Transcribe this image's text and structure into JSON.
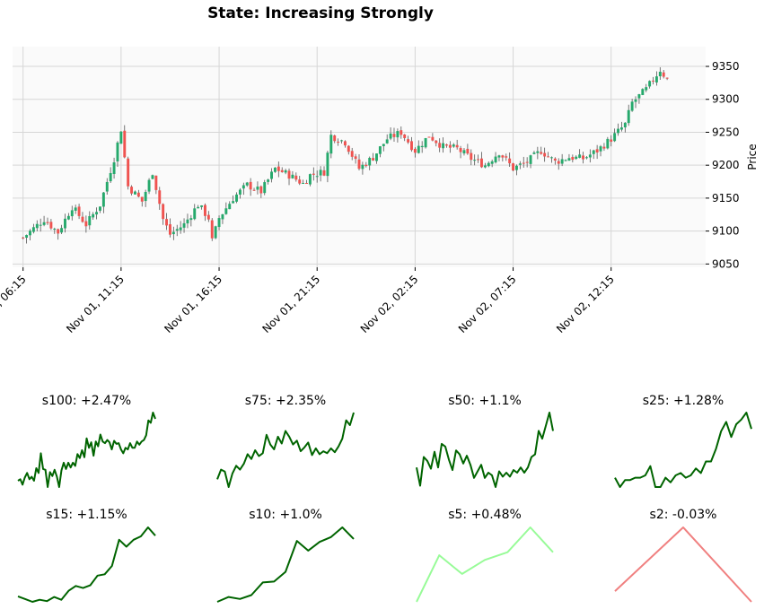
{
  "title": "State: Increasing Strongly",
  "chart_data": [
    {
      "type": "candlestick",
      "ylabel": "Price",
      "ylim": [
        9045,
        9380
      ],
      "y_ticks": [
        9050,
        9100,
        9150,
        9200,
        9250,
        9300,
        9350
      ],
      "x_range": [
        -3,
        195
      ],
      "x_ticks": [
        {
          "label": "Nov 01, 06:15",
          "index": 0
        },
        {
          "label": "Nov 01, 11:15",
          "index": 28
        },
        {
          "label": "Nov 01, 16:15",
          "index": 56
        },
        {
          "label": "Nov 01, 21:15",
          "index": 84
        },
        {
          "label": "Nov 02, 02:15",
          "index": 112
        },
        {
          "label": "Nov 02, 07:15",
          "index": 140
        },
        {
          "label": "Nov 02, 12:15",
          "index": 168
        }
      ],
      "grid": true,
      "colors": {
        "up": "#26a96c",
        "down": "#ef5350",
        "wick": "#555555",
        "plot_bg": "#fafafa",
        "grid": "#d6d6d6"
      },
      "anchors": [
        [
          0,
          9090
        ],
        [
          6,
          9118
        ],
        [
          10,
          9098
        ],
        [
          14,
          9137
        ],
        [
          18,
          9110
        ],
        [
          22,
          9140
        ],
        [
          26,
          9210
        ],
        [
          28,
          9255
        ],
        [
          30,
          9168
        ],
        [
          34,
          9145
        ],
        [
          37,
          9190
        ],
        [
          40,
          9118
        ],
        [
          42,
          9095
        ],
        [
          46,
          9110
        ],
        [
          50,
          9140
        ],
        [
          53,
          9120
        ],
        [
          54,
          9085
        ],
        [
          56,
          9120
        ],
        [
          60,
          9150
        ],
        [
          64,
          9170
        ],
        [
          68,
          9160
        ],
        [
          72,
          9195
        ],
        [
          76,
          9185
        ],
        [
          80,
          9172
        ],
        [
          82,
          9185
        ],
        [
          86,
          9190
        ],
        [
          88,
          9245
        ],
        [
          92,
          9235
        ],
        [
          96,
          9195
        ],
        [
          100,
          9212
        ],
        [
          104,
          9240
        ],
        [
          108,
          9250
        ],
        [
          112,
          9222
        ],
        [
          116,
          9245
        ],
        [
          120,
          9228
        ],
        [
          124,
          9225
        ],
        [
          128,
          9210
        ],
        [
          132,
          9200
        ],
        [
          136,
          9220
        ],
        [
          140,
          9195
        ],
        [
          144,
          9205
        ],
        [
          148,
          9222
        ],
        [
          152,
          9205
        ],
        [
          156,
          9212
        ],
        [
          160,
          9210
        ],
        [
          164,
          9222
        ],
        [
          168,
          9240
        ],
        [
          172,
          9262
        ],
        [
          174,
          9295
        ],
        [
          178,
          9315
        ],
        [
          182,
          9345
        ],
        [
          184,
          9330
        ]
      ],
      "seed": 7
    },
    {
      "type": "line",
      "panels": [
        {
          "title": "s100: +2.47%",
          "color": "#006400",
          "values": [
            9098,
            9100,
            9093,
            9102,
            9108,
            9100,
            9103,
            9098,
            9114,
            9108,
            9133,
            9113,
            9112,
            9090,
            9109,
            9104,
            9112,
            9103,
            9090,
            9111,
            9121,
            9113,
            9121,
            9115,
            9121,
            9117,
            9132,
            9127,
            9137,
            9128,
            9152,
            9140,
            9147,
            9130,
            9148,
            9142,
            9157,
            9148,
            9146,
            9150,
            9147,
            9138,
            9149,
            9145,
            9146,
            9138,
            9133,
            9140,
            9138,
            9146,
            9140,
            9140,
            9148,
            9144,
            9148,
            9150,
            9156,
            9175,
            9172,
            9185,
            9177
          ]
        },
        {
          "title": "s75: +2.35%",
          "color": "#006400",
          "values": [
            9102,
            9112,
            9110,
            9094,
            9108,
            9116,
            9112,
            9118,
            9128,
            9123,
            9132,
            9126,
            9129,
            9148,
            9138,
            9133,
            9146,
            9139,
            9152,
            9146,
            9138,
            9142,
            9131,
            9135,
            9140,
            9127,
            9134,
            9128,
            9131,
            9129,
            9134,
            9130,
            9136,
            9144,
            9163,
            9158,
            9171
          ]
        },
        {
          "title": "s50: +1.1%",
          "color": "#006400",
          "values": [
            9120,
            9106,
            9128,
            9125,
            9119,
            9132,
            9120,
            9138,
            9136,
            9126,
            9118,
            9133,
            9130,
            9123,
            9129,
            9122,
            9112,
            9117,
            9122,
            9112,
            9116,
            9114,
            9105,
            9117,
            9113,
            9116,
            9113,
            9118,
            9116,
            9120,
            9116,
            9120,
            9128,
            9130,
            9148,
            9142,
            9152,
            9162,
            9148
          ]
        },
        {
          "title": "s25: +1.28%",
          "color": "#006400",
          "values": [
            9100,
            9092,
            9098,
            9098,
            9100,
            9100,
            9102,
            9110,
            9092,
            9092,
            9100,
            9096,
            9102,
            9104,
            9100,
            9102,
            9108,
            9104,
            9114,
            9114,
            9125,
            9140,
            9148,
            9135,
            9146,
            9150,
            9156,
            9142
          ]
        },
        {
          "title": "s15: +1.15%",
          "color": "#006400",
          "values": [
            9098,
            9094,
            9090,
            9093,
            9091,
            9097,
            9093,
            9106,
            9113,
            9110,
            9114,
            9128,
            9130,
            9142,
            9180,
            9170,
            9180,
            9185,
            9198,
            9186
          ]
        },
        {
          "title": "s10: +1.0%",
          "color": "#006400",
          "values": [
            9090,
            9095,
            9093,
            9097,
            9110,
            9111,
            9121,
            9153,
            9143,
            9152,
            9157,
            9167,
            9155
          ]
        },
        {
          "title": "s5: +0.48%",
          "color": "#98fb98",
          "values": [
            9150,
            9180,
            9168,
            9177,
            9182,
            9198,
            9182
          ]
        },
        {
          "title": "s2: -0.03%",
          "color": "#f08080",
          "values": [
            9150,
            9180,
            9145
          ]
        }
      ]
    }
  ]
}
